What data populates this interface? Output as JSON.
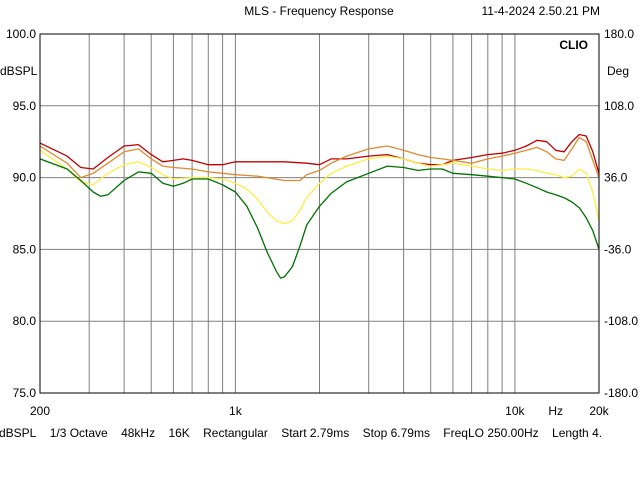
{
  "header": {
    "title": "MLS - Frequency Response",
    "timestamp": "11-4-2024 2.50.21 PM",
    "brand": "CLIO"
  },
  "footer": {
    "items": [
      "dBSPL",
      "1/3 Octave",
      "48kHz",
      "16K",
      "Rectangular",
      "Start 2.79ms",
      "Stop 6.79ms",
      "FreqLO 250.00Hz",
      "Length 4."
    ]
  },
  "colors": {
    "background": "#ffffff",
    "grid": "#808080",
    "red": "#c00000",
    "orange": "#e08a30",
    "yellow": "#ffee44",
    "green": "#007000"
  },
  "chart_data": {
    "type": "line",
    "x_scale": "log",
    "xlim": [
      200,
      20000
    ],
    "ylim": [
      75,
      100
    ],
    "y2lim": [
      -180,
      180
    ],
    "ylabel": "dBSPL",
    "y2label": "Deg",
    "yticks": [
      "100.0",
      "95.0",
      "90.0",
      "85.0",
      "80.0",
      "75.0"
    ],
    "y2ticks": [
      "180.0",
      "108.0",
      "36.0",
      "-36.0",
      "-108.0",
      "-180.0"
    ],
    "xtick_labels": [
      {
        "x": 200,
        "label": "200"
      },
      {
        "x": 1000,
        "label": "1k"
      },
      {
        "x": 10000,
        "label": "10k"
      },
      {
        "x": 14000,
        "label": "Hz"
      },
      {
        "x": 20000,
        "label": "20k"
      }
    ],
    "grid": true,
    "series": [
      {
        "color": "#c00000",
        "points": [
          [
            200,
            92.4
          ],
          [
            250,
            91.5
          ],
          [
            280,
            90.7
          ],
          [
            310,
            90.6
          ],
          [
            350,
            91.4
          ],
          [
            400,
            92.2
          ],
          [
            450,
            92.3
          ],
          [
            500,
            91.6
          ],
          [
            550,
            91.1
          ],
          [
            600,
            91.2
          ],
          [
            650,
            91.3
          ],
          [
            700,
            91.2
          ],
          [
            800,
            90.9
          ],
          [
            900,
            90.9
          ],
          [
            1000,
            91.1
          ],
          [
            1200,
            91.1
          ],
          [
            1500,
            91.1
          ],
          [
            1800,
            91.0
          ],
          [
            2000,
            90.9
          ],
          [
            2200,
            91.3
          ],
          [
            2500,
            91.3
          ],
          [
            3000,
            91.5
          ],
          [
            3500,
            91.6
          ],
          [
            4000,
            91.3
          ],
          [
            4500,
            91.0
          ],
          [
            5000,
            90.9
          ],
          [
            5500,
            90.9
          ],
          [
            6000,
            91.2
          ],
          [
            7000,
            91.4
          ],
          [
            8000,
            91.6
          ],
          [
            9000,
            91.7
          ],
          [
            10000,
            91.9
          ],
          [
            11000,
            92.2
          ],
          [
            12000,
            92.6
          ],
          [
            13000,
            92.5
          ],
          [
            14000,
            91.9
          ],
          [
            15000,
            91.8
          ],
          [
            16000,
            92.5
          ],
          [
            17000,
            93.0
          ],
          [
            18000,
            92.9
          ],
          [
            19000,
            91.8
          ],
          [
            20000,
            90.3
          ]
        ]
      },
      {
        "color": "#e08a30",
        "points": [
          [
            200,
            92.2
          ],
          [
            250,
            91.0
          ],
          [
            280,
            90.0
          ],
          [
            310,
            90.3
          ],
          [
            350,
            91.0
          ],
          [
            400,
            91.8
          ],
          [
            450,
            92.0
          ],
          [
            500,
            91.3
          ],
          [
            550,
            90.8
          ],
          [
            600,
            90.7
          ],
          [
            700,
            90.6
          ],
          [
            800,
            90.4
          ],
          [
            900,
            90.3
          ],
          [
            1000,
            90.2
          ],
          [
            1200,
            90.1
          ],
          [
            1500,
            89.8
          ],
          [
            1700,
            89.8
          ],
          [
            1800,
            90.2
          ],
          [
            2000,
            90.5
          ],
          [
            2200,
            91.0
          ],
          [
            2500,
            91.5
          ],
          [
            3000,
            92.0
          ],
          [
            3500,
            92.2
          ],
          [
            4000,
            91.9
          ],
          [
            4500,
            91.6
          ],
          [
            5000,
            91.4
          ],
          [
            5500,
            91.3
          ],
          [
            6000,
            91.2
          ],
          [
            7000,
            91.0
          ],
          [
            8000,
            91.3
          ],
          [
            9000,
            91.5
          ],
          [
            10000,
            91.7
          ],
          [
            11000,
            91.9
          ],
          [
            12000,
            92.1
          ],
          [
            13000,
            91.8
          ],
          [
            14000,
            91.3
          ],
          [
            15000,
            91.2
          ],
          [
            16000,
            92.0
          ],
          [
            17000,
            92.8
          ],
          [
            18000,
            92.5
          ],
          [
            19000,
            91.2
          ],
          [
            20000,
            90.0
          ]
        ]
      },
      {
        "color": "#ffee44",
        "points": [
          [
            200,
            91.9
          ],
          [
            250,
            90.6
          ],
          [
            280,
            89.7
          ],
          [
            310,
            89.5
          ],
          [
            350,
            90.3
          ],
          [
            400,
            90.9
          ],
          [
            450,
            91.1
          ],
          [
            500,
            90.7
          ],
          [
            550,
            90.2
          ],
          [
            600,
            89.9
          ],
          [
            700,
            90.0
          ],
          [
            800,
            90.0
          ],
          [
            900,
            89.9
          ],
          [
            1000,
            89.6
          ],
          [
            1100,
            89.2
          ],
          [
            1200,
            88.5
          ],
          [
            1300,
            87.6
          ],
          [
            1400,
            87.0
          ],
          [
            1500,
            86.8
          ],
          [
            1600,
            87.0
          ],
          [
            1700,
            87.7
          ],
          [
            1800,
            88.6
          ],
          [
            2000,
            89.6
          ],
          [
            2200,
            90.3
          ],
          [
            2500,
            90.8
          ],
          [
            3000,
            91.3
          ],
          [
            3500,
            91.5
          ],
          [
            4000,
            91.3
          ],
          [
            4500,
            91.0
          ],
          [
            5000,
            90.8
          ],
          [
            5500,
            90.9
          ],
          [
            6000,
            91.0
          ],
          [
            7000,
            90.8
          ],
          [
            8000,
            90.6
          ],
          [
            9000,
            90.5
          ],
          [
            10000,
            90.6
          ],
          [
            11000,
            90.6
          ],
          [
            12000,
            90.5
          ],
          [
            13000,
            90.3
          ],
          [
            14000,
            90.2
          ],
          [
            15000,
            90.0
          ],
          [
            16000,
            90.1
          ],
          [
            17000,
            90.6
          ],
          [
            18000,
            90.3
          ],
          [
            19000,
            89.0
          ],
          [
            20000,
            87.0
          ]
        ]
      },
      {
        "color": "#007000",
        "points": [
          [
            200,
            91.3
          ],
          [
            250,
            90.6
          ],
          [
            280,
            89.8
          ],
          [
            310,
            89.0
          ],
          [
            330,
            88.7
          ],
          [
            350,
            88.8
          ],
          [
            400,
            89.8
          ],
          [
            450,
            90.4
          ],
          [
            500,
            90.3
          ],
          [
            550,
            89.6
          ],
          [
            600,
            89.4
          ],
          [
            650,
            89.6
          ],
          [
            700,
            89.9
          ],
          [
            800,
            89.9
          ],
          [
            900,
            89.5
          ],
          [
            1000,
            89.0
          ],
          [
            1100,
            88.0
          ],
          [
            1200,
            86.5
          ],
          [
            1300,
            84.8
          ],
          [
            1400,
            83.5
          ],
          [
            1450,
            83.0
          ],
          [
            1500,
            83.1
          ],
          [
            1600,
            83.8
          ],
          [
            1700,
            85.2
          ],
          [
            1800,
            86.7
          ],
          [
            2000,
            88.0
          ],
          [
            2200,
            88.9
          ],
          [
            2500,
            89.7
          ],
          [
            3000,
            90.3
          ],
          [
            3500,
            90.8
          ],
          [
            4000,
            90.7
          ],
          [
            4500,
            90.5
          ],
          [
            5000,
            90.6
          ],
          [
            5500,
            90.6
          ],
          [
            6000,
            90.3
          ],
          [
            7000,
            90.2
          ],
          [
            8000,
            90.1
          ],
          [
            9000,
            90.0
          ],
          [
            10000,
            89.9
          ],
          [
            11000,
            89.6
          ],
          [
            12000,
            89.3
          ],
          [
            13000,
            89.0
          ],
          [
            14000,
            88.8
          ],
          [
            15000,
            88.6
          ],
          [
            16000,
            88.3
          ],
          [
            17000,
            87.9
          ],
          [
            18000,
            87.2
          ],
          [
            19000,
            86.3
          ],
          [
            20000,
            85.0
          ]
        ]
      }
    ]
  }
}
